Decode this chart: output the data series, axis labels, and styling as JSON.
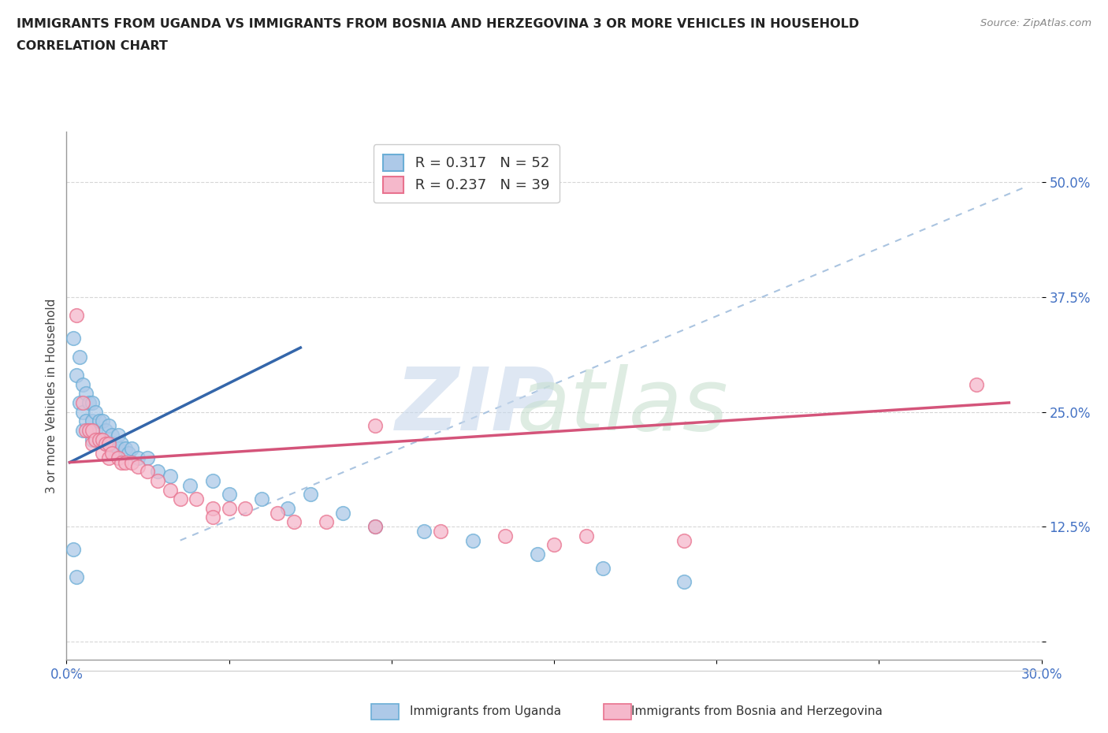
{
  "title_line1": "IMMIGRANTS FROM UGANDA VS IMMIGRANTS FROM BOSNIA AND HERZEGOVINA 3 OR MORE VEHICLES IN HOUSEHOLD",
  "title_line2": "CORRELATION CHART",
  "source_text": "Source: ZipAtlas.com",
  "ylabel": "3 or more Vehicles in Household",
  "xlim": [
    0.0,
    0.3
  ],
  "ylim": [
    -0.02,
    0.555
  ],
  "y_ticks": [
    0.0,
    0.125,
    0.25,
    0.375,
    0.5
  ],
  "y_tick_labels": [
    "",
    "12.5%",
    "25.0%",
    "37.5%",
    "50.0%"
  ],
  "legend_r1": "R = 0.317",
  "legend_n1": "N = 52",
  "legend_r2": "R = 0.237",
  "legend_n2": "N = 39",
  "uganda_color": "#adc9e8",
  "uganda_edge_color": "#6baed6",
  "bosnia_color": "#f5b8cb",
  "bosnia_edge_color": "#e8728e",
  "uganda_line_color": "#3466aa",
  "bosnia_line_color": "#d4547a",
  "dashed_line_color": "#aac4e0",
  "background_color": "#ffffff",
  "grid_color": "#cccccc",
  "uganda_points_x": [
    0.002,
    0.003,
    0.004,
    0.004,
    0.005,
    0.005,
    0.005,
    0.006,
    0.006,
    0.007,
    0.007,
    0.008,
    0.008,
    0.008,
    0.009,
    0.009,
    0.01,
    0.01,
    0.011,
    0.011,
    0.012,
    0.012,
    0.013,
    0.013,
    0.014,
    0.014,
    0.015,
    0.016,
    0.016,
    0.017,
    0.018,
    0.019,
    0.02,
    0.022,
    0.025,
    0.028,
    0.032,
    0.038,
    0.045,
    0.05,
    0.06,
    0.068,
    0.075,
    0.085,
    0.095,
    0.11,
    0.125,
    0.145,
    0.165,
    0.19,
    0.002,
    0.003
  ],
  "uganda_points_y": [
    0.33,
    0.29,
    0.31,
    0.26,
    0.28,
    0.25,
    0.23,
    0.27,
    0.24,
    0.26,
    0.23,
    0.26,
    0.24,
    0.22,
    0.25,
    0.23,
    0.24,
    0.22,
    0.24,
    0.22,
    0.23,
    0.215,
    0.235,
    0.215,
    0.225,
    0.21,
    0.215,
    0.225,
    0.21,
    0.215,
    0.21,
    0.205,
    0.21,
    0.2,
    0.2,
    0.185,
    0.18,
    0.17,
    0.175,
    0.16,
    0.155,
    0.145,
    0.16,
    0.14,
    0.125,
    0.12,
    0.11,
    0.095,
    0.08,
    0.065,
    0.1,
    0.07
  ],
  "bosnia_points_x": [
    0.003,
    0.005,
    0.006,
    0.007,
    0.008,
    0.008,
    0.009,
    0.01,
    0.011,
    0.011,
    0.012,
    0.013,
    0.013,
    0.014,
    0.016,
    0.017,
    0.018,
    0.02,
    0.022,
    0.025,
    0.028,
    0.032,
    0.035,
    0.04,
    0.045,
    0.055,
    0.065,
    0.08,
    0.095,
    0.115,
    0.135,
    0.16,
    0.19,
    0.28,
    0.095,
    0.045,
    0.05,
    0.07,
    0.15
  ],
  "bosnia_points_y": [
    0.355,
    0.26,
    0.23,
    0.23,
    0.23,
    0.215,
    0.22,
    0.22,
    0.22,
    0.205,
    0.215,
    0.215,
    0.2,
    0.205,
    0.2,
    0.195,
    0.195,
    0.195,
    0.19,
    0.185,
    0.175,
    0.165,
    0.155,
    0.155,
    0.145,
    0.145,
    0.14,
    0.13,
    0.125,
    0.12,
    0.115,
    0.115,
    0.11,
    0.28,
    0.235,
    0.135,
    0.145,
    0.13,
    0.105
  ],
  "uganda_line_x": [
    0.001,
    0.072
  ],
  "uganda_line_y": [
    0.195,
    0.32
  ],
  "bosnia_line_x": [
    0.001,
    0.29
  ],
  "bosnia_line_y": [
    0.195,
    0.26
  ],
  "diag_line_x": [
    0.035,
    0.295
  ],
  "diag_line_y": [
    0.11,
    0.495
  ]
}
